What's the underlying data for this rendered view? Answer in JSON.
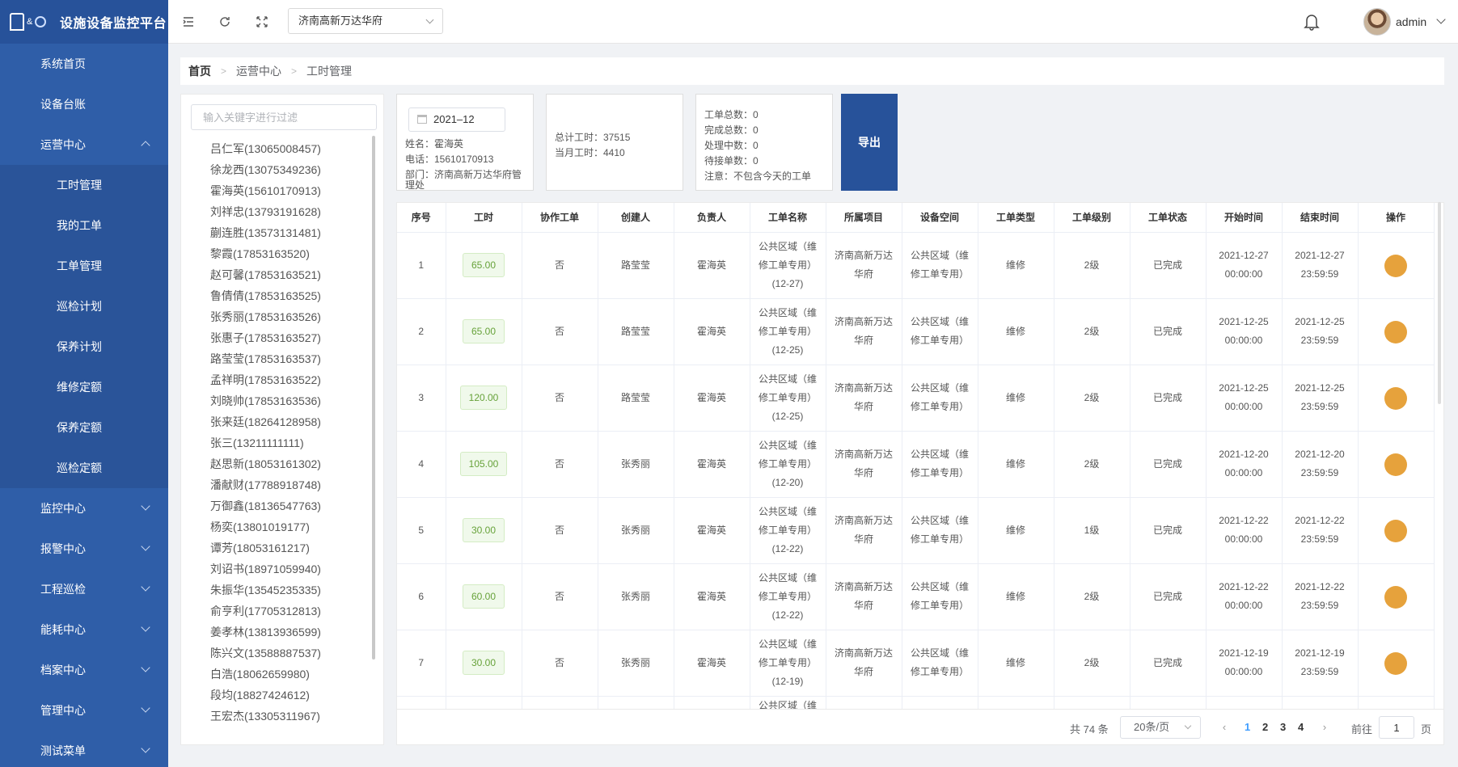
{
  "app": {
    "title": "设施设备监控平台"
  },
  "sidebar": {
    "items": [
      {
        "label": "系统首页",
        "icon": "home-icon"
      },
      {
        "label": "设备台账",
        "icon": "list-icon"
      },
      {
        "label": "运营中心",
        "icon": "monitor-icon",
        "expanded": true,
        "children": [
          {
            "label": "工时管理",
            "icon": "clock-icon"
          },
          {
            "label": "我的工单",
            "icon": "smile-icon"
          },
          {
            "label": "工单管理",
            "icon": "document-icon"
          },
          {
            "label": "巡检计划",
            "icon": "location-icon"
          },
          {
            "label": "保养计划",
            "icon": "gauge-icon"
          },
          {
            "label": "维修定额",
            "icon": "calendar-icon"
          },
          {
            "label": "保养定额",
            "icon": "gear-icon"
          },
          {
            "label": "巡检定额",
            "icon": "clipboard-icon"
          }
        ]
      },
      {
        "label": "监控中心",
        "icon": "laptop-icon"
      },
      {
        "label": "报警中心",
        "icon": "alarm-icon"
      },
      {
        "label": "工程巡检",
        "icon": "checklist-icon"
      },
      {
        "label": "能耗中心",
        "icon": "energy-icon"
      },
      {
        "label": "档案中心",
        "icon": "archive-icon"
      },
      {
        "label": "管理中心",
        "icon": "settings-icon"
      },
      {
        "label": "测试菜单",
        "icon": "test-icon"
      }
    ]
  },
  "header": {
    "project": "济南高新万达华府",
    "user": "admin"
  },
  "breadcrumb": [
    "首页",
    "运营中心",
    "工时管理"
  ],
  "tree": {
    "placeholder": "输入关键字进行过滤",
    "people": [
      "吕仁军(13065008457)",
      "徐龙西(13075349236)",
      "霍海英(15610170913)",
      "刘祥忠(13793191628)",
      "蒯连胜(13573131481)",
      "黎霞(17853163520)",
      "赵可馨(17853163521)",
      "鲁倩倩(17853163525)",
      "张秀丽(17853163526)",
      "张惠子(17853163527)",
      "路莹莹(17853163537)",
      "孟祥明(17853163522)",
      "刘晓帅(17853163536)",
      "张来廷(18264128958)",
      "张三(13211111111)",
      "赵思新(18053161302)",
      "潘献财(17788918748)",
      "万御鑫(18136547763)",
      "杨奕(13801019177)",
      "谭芳(18053161217)",
      "刘诏书(18971059940)",
      "朱振华(13545235335)",
      "俞亨利(17705312813)",
      "姜孝林(13813936599)",
      "陈兴文(13588887537)",
      "白浩(18062659980)",
      "段均(18827424612)",
      "王宏杰(13305311967)"
    ]
  },
  "summary": {
    "date": "2021–12",
    "name_line": "姓名：霍海英",
    "phone_line": "电话：15610170913",
    "dept_line1": "部门：济南高新万达华府管",
    "dept_line2": "理处",
    "total_hours": "总计工时：37515",
    "month_hours": "当月工时：4410",
    "order_total": "工单总数：0",
    "order_done": "完成总数：0",
    "order_processing": "处理中数：0",
    "order_pending": "待接单数：0",
    "note": "注意：不包含今天的工单",
    "export_label": "导出"
  },
  "table": {
    "headers": [
      "序号",
      "工时",
      "协作工单",
      "创建人",
      "负责人",
      "工单名称",
      "所属项目",
      "设备空间",
      "工单类型",
      "工单级别",
      "工单状态",
      "开始时间",
      "结束时间",
      "操作"
    ],
    "rows": [
      {
        "no": "1",
        "hours": "65.00",
        "collab": "否",
        "creator": "路莹莹",
        "owner": "霍海英",
        "name": "公共区域（维修工单专用）(12-27)",
        "project": "济南高新万达华府",
        "space": "公共区域（维修工单专用）",
        "type": "维修",
        "level": "2级",
        "status": "已完成",
        "start": "2021-12-27 00:00:00",
        "end": "2021-12-27 23:59:59"
      },
      {
        "no": "2",
        "hours": "65.00",
        "collab": "否",
        "creator": "路莹莹",
        "owner": "霍海英",
        "name": "公共区域（维修工单专用）(12-25)",
        "project": "济南高新万达华府",
        "space": "公共区域（维修工单专用）",
        "type": "维修",
        "level": "2级",
        "status": "已完成",
        "start": "2021-12-25 00:00:00",
        "end": "2021-12-25 23:59:59"
      },
      {
        "no": "3",
        "hours": "120.00",
        "collab": "否",
        "creator": "路莹莹",
        "owner": "霍海英",
        "name": "公共区域（维修工单专用）(12-25)",
        "project": "济南高新万达华府",
        "space": "公共区域（维修工单专用）",
        "type": "维修",
        "level": "2级",
        "status": "已完成",
        "start": "2021-12-25 00:00:00",
        "end": "2021-12-25 23:59:59"
      },
      {
        "no": "4",
        "hours": "105.00",
        "collab": "否",
        "creator": "张秀丽",
        "owner": "霍海英",
        "name": "公共区域（维修工单专用）(12-20)",
        "project": "济南高新万达华府",
        "space": "公共区域（维修工单专用）",
        "type": "维修",
        "level": "2级",
        "status": "已完成",
        "start": "2021-12-20 00:00:00",
        "end": "2021-12-20 23:59:59"
      },
      {
        "no": "5",
        "hours": "30.00",
        "collab": "否",
        "creator": "张秀丽",
        "owner": "霍海英",
        "name": "公共区域（维修工单专用）(12-22)",
        "project": "济南高新万达华府",
        "space": "公共区域（维修工单专用）",
        "type": "维修",
        "level": "1级",
        "status": "已完成",
        "start": "2021-12-22 00:00:00",
        "end": "2021-12-22 23:59:59"
      },
      {
        "no": "6",
        "hours": "60.00",
        "collab": "否",
        "creator": "张秀丽",
        "owner": "霍海英",
        "name": "公共区域（维修工单专用）(12-22)",
        "project": "济南高新万达华府",
        "space": "公共区域（维修工单专用）",
        "type": "维修",
        "level": "2级",
        "status": "已完成",
        "start": "2021-12-22 00:00:00",
        "end": "2021-12-22 23:59:59"
      },
      {
        "no": "7",
        "hours": "30.00",
        "collab": "否",
        "creator": "张秀丽",
        "owner": "霍海英",
        "name": "公共区域（维修工单专用）(12-19)",
        "project": "济南高新万达华府",
        "space": "公共区域（维修工单专用）",
        "type": "维修",
        "level": "2级",
        "status": "已完成",
        "start": "2021-12-19 00:00:00",
        "end": "2021-12-19 23:59:59"
      },
      {
        "no": "",
        "hours": "",
        "collab": "",
        "creator": "",
        "owner": "",
        "name": "公共区域（维",
        "project": "",
        "space": "",
        "type": "",
        "level": "",
        "status": "",
        "start": "",
        "end": ""
      }
    ]
  },
  "pagination": {
    "total": "共 74 条",
    "page_size": "20条/页",
    "pages": [
      "1",
      "2",
      "3",
      "4"
    ],
    "prev": "‹",
    "next": "›",
    "goto_label": "前往",
    "goto_value": "1",
    "page_suffix": "页"
  },
  "colors": {
    "sidebar": "#2f5ea8",
    "accent": "#27529a",
    "view_button": "#e6a23c",
    "hours_tag": "#67a23a"
  }
}
